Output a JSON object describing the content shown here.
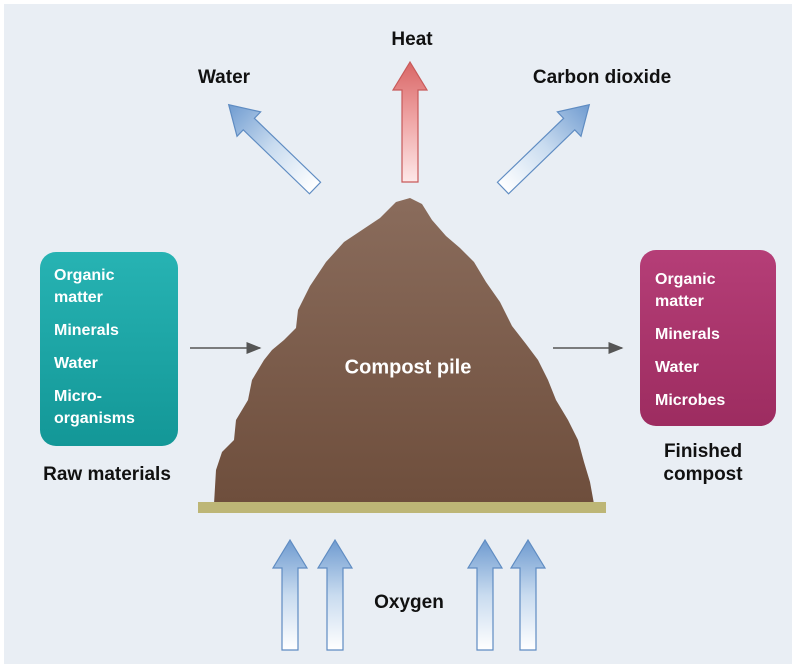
{
  "outputs": {
    "heat": "Heat",
    "water": "Water",
    "carbon_dioxide": "Carbon dioxide"
  },
  "raw_materials": {
    "items": [
      [
        "Organic",
        "matter"
      ],
      [
        "Minerals"
      ],
      [
        "Water"
      ],
      [
        "Micro-",
        "organisms"
      ]
    ],
    "caption": "Raw materials"
  },
  "finished_compost": {
    "items": [
      [
        "Organic",
        "matter"
      ],
      [
        "Minerals"
      ],
      [
        "Water"
      ],
      [
        "Microbes"
      ]
    ],
    "caption": [
      "Finished",
      "compost"
    ]
  },
  "pile": {
    "label": "Compost pile"
  },
  "input": {
    "label": "Oxygen"
  }
}
